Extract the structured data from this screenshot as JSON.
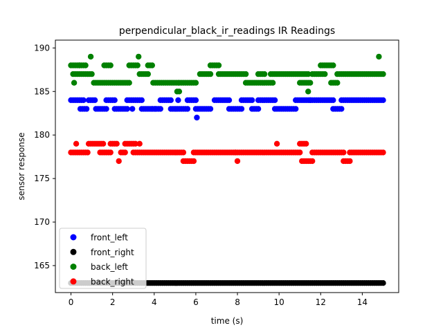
{
  "chart_data": {
    "type": "scatter",
    "title": "perpendicular_black_ir_readings IR Readings",
    "xlabel": "time (s)",
    "ylabel": "sensor response",
    "xlim": [
      -0.75,
      15.75
    ],
    "ylim": [
      161.9,
      190.9
    ],
    "xticks": [
      0,
      2,
      4,
      6,
      8,
      10,
      12,
      14
    ],
    "yticks": [
      165,
      170,
      175,
      180,
      185,
      190
    ],
    "grid": false,
    "legend": "lower-left",
    "series": [
      {
        "name": "front_left",
        "color": "#0000ff",
        "segments": [
          [
            0.0,
            0.6,
            184
          ],
          [
            0.45,
            0.8,
            183
          ],
          [
            0.85,
            1.15,
            184
          ],
          [
            1.2,
            1.7,
            183
          ],
          [
            1.7,
            2.1,
            184
          ],
          [
            2.1,
            2.7,
            183
          ],
          [
            2.7,
            3.4,
            184
          ],
          [
            3.4,
            3.9,
            183
          ],
          [
            3.9,
            4.3,
            183
          ],
          [
            4.3,
            4.8,
            184
          ],
          [
            4.8,
            5.6,
            183
          ],
          [
            5.6,
            6.0,
            184
          ],
          [
            6.0,
            6.7,
            183
          ],
          [
            6.9,
            7.6,
            184
          ],
          [
            7.6,
            8.2,
            183
          ],
          [
            8.2,
            8.7,
            184
          ],
          [
            8.7,
            9.0,
            183
          ],
          [
            9.0,
            9.8,
            184
          ],
          [
            9.8,
            10.8,
            183
          ],
          [
            10.8,
            12.6,
            184
          ],
          [
            12.6,
            13.0,
            183
          ],
          [
            13.0,
            15.0,
            184
          ]
        ],
        "points": [
          [
            5.15,
            184
          ],
          [
            6.05,
            182
          ],
          [
            2.95,
            183
          ],
          [
            4.05,
            183
          ],
          [
            11.5,
            184
          ]
        ]
      },
      {
        "name": "front_right",
        "color": "#000000",
        "segments": [
          [
            0.0,
            15.0,
            163
          ]
        ],
        "points": []
      },
      {
        "name": "back_left",
        "color": "#008000",
        "segments": [
          [
            0.0,
            0.45,
            188
          ],
          [
            0.1,
            0.55,
            187
          ],
          [
            0.4,
            0.75,
            188
          ],
          [
            0.6,
            1.0,
            187
          ],
          [
            1.1,
            1.8,
            186
          ],
          [
            1.6,
            1.9,
            188
          ],
          [
            1.9,
            2.8,
            186
          ],
          [
            2.8,
            3.2,
            188
          ],
          [
            3.3,
            3.7,
            187
          ],
          [
            3.7,
            3.9,
            188
          ],
          [
            3.95,
            5.2,
            186
          ],
          [
            5.2,
            6.0,
            186
          ],
          [
            6.2,
            6.7,
            187
          ],
          [
            6.7,
            7.1,
            188
          ],
          [
            7.1,
            8.4,
            187
          ],
          [
            8.4,
            9.2,
            186
          ],
          [
            9.0,
            9.3,
            187
          ],
          [
            9.3,
            9.7,
            186
          ],
          [
            9.6,
            11.4,
            187
          ],
          [
            11.0,
            11.5,
            186
          ],
          [
            11.6,
            12.2,
            187
          ],
          [
            12.0,
            12.6,
            188
          ],
          [
            12.5,
            12.8,
            186
          ],
          [
            12.8,
            15.0,
            187
          ]
        ],
        "points": [
          [
            0.95,
            189
          ],
          [
            3.25,
            189
          ],
          [
            5.1,
            185
          ],
          [
            5.2,
            185
          ],
          [
            11.4,
            185
          ],
          [
            14.8,
            189
          ],
          [
            0.15,
            186
          ]
        ]
      },
      {
        "name": "back_right",
        "color": "#ff0000",
        "segments": [
          [
            0.0,
            0.85,
            178
          ],
          [
            0.85,
            1.55,
            179
          ],
          [
            1.4,
            1.9,
            178
          ],
          [
            1.9,
            2.2,
            179
          ],
          [
            2.4,
            2.6,
            178
          ],
          [
            2.6,
            3.1,
            179
          ],
          [
            3.0,
            5.4,
            178
          ],
          [
            5.4,
            5.9,
            177
          ],
          [
            5.9,
            7.9,
            178
          ],
          [
            7.9,
            11.0,
            178
          ],
          [
            11.0,
            11.3,
            179
          ],
          [
            11.1,
            11.6,
            177
          ],
          [
            11.6,
            13.1,
            178
          ],
          [
            13.1,
            13.4,
            177
          ],
          [
            13.4,
            15.0,
            178
          ]
        ],
        "points": [
          [
            0.25,
            179
          ],
          [
            2.3,
            177
          ],
          [
            3.3,
            179
          ],
          [
            8.0,
            177
          ],
          [
            9.9,
            179
          ]
        ]
      }
    ]
  }
}
